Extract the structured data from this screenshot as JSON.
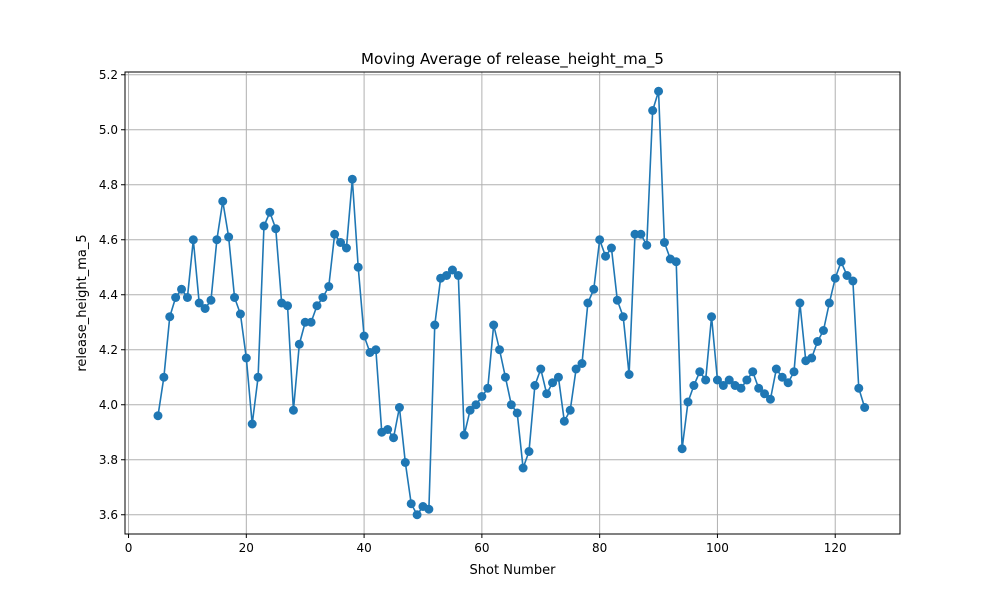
{
  "chart_data": {
    "type": "line",
    "title": "Moving Average of release_height_ma_5",
    "xlabel": "Shot Number",
    "ylabel": "release_height_ma_5",
    "xlim": [
      -0.6,
      131.0
    ],
    "ylim": [
      3.53,
      5.21
    ],
    "xticks": [
      0,
      20,
      40,
      60,
      80,
      100,
      120
    ],
    "xtick_labels": [
      "0",
      "20",
      "40",
      "60",
      "80",
      "100",
      "120"
    ],
    "yticks": [
      3.6,
      3.8,
      4.0,
      4.2,
      4.4,
      4.6,
      4.8,
      5.0,
      5.2
    ],
    "ytick_labels": [
      "3.6",
      "3.8",
      "4.0",
      "4.2",
      "4.4",
      "4.6",
      "4.8",
      "5.0",
      "5.2"
    ],
    "grid": true,
    "marker": "circle",
    "color": "#1f77b4",
    "series": [
      {
        "x": [
          5,
          6,
          7,
          8,
          9,
          10,
          11,
          12,
          13,
          14,
          15,
          16,
          17,
          18,
          19,
          20,
          21,
          22,
          23,
          24,
          25,
          26,
          27,
          28,
          29,
          30,
          31,
          32,
          33,
          34,
          35,
          36,
          37,
          38,
          39,
          40,
          41,
          42,
          43,
          44,
          45,
          46,
          47,
          48,
          49,
          50,
          51,
          52,
          53,
          54,
          55,
          56,
          57,
          58,
          59,
          60,
          61,
          62,
          63,
          64,
          65,
          66,
          67,
          68,
          69,
          70,
          71,
          72,
          73,
          74,
          75,
          76,
          77,
          78,
          79,
          80,
          81,
          82,
          83,
          84,
          85,
          86,
          87,
          88,
          89,
          90,
          91,
          92,
          93,
          94,
          95,
          96,
          97,
          98,
          99,
          100,
          101,
          102,
          103,
          104,
          105,
          106,
          107,
          108,
          109,
          110,
          111,
          112,
          113,
          114,
          115,
          116,
          117,
          118,
          119,
          120,
          121,
          122,
          123,
          124,
          125
        ],
        "values": [
          3.96,
          4.1,
          4.32,
          4.39,
          4.42,
          4.39,
          4.6,
          4.37,
          4.35,
          4.38,
          4.6,
          4.74,
          4.61,
          4.39,
          4.33,
          4.17,
          3.93,
          4.1,
          4.65,
          4.7,
          4.64,
          4.37,
          4.36,
          3.98,
          4.22,
          4.3,
          4.3,
          4.36,
          4.39,
          4.43,
          4.62,
          4.59,
          4.57,
          4.82,
          4.5,
          4.25,
          4.19,
          4.2,
          3.9,
          3.91,
          3.88,
          3.99,
          3.79,
          3.64,
          3.6,
          3.63,
          3.62,
          4.29,
          4.46,
          4.47,
          4.49,
          4.47,
          3.89,
          3.98,
          4.0,
          4.03,
          4.06,
          4.29,
          4.2,
          4.1,
          4.0,
          3.97,
          3.77,
          3.83,
          4.07,
          4.13,
          4.04,
          4.08,
          4.1,
          3.94,
          3.98,
          4.13,
          4.15,
          4.37,
          4.42,
          4.6,
          4.54,
          4.57,
          4.38,
          4.32,
          4.11,
          4.62,
          4.62,
          4.58,
          5.07,
          5.14,
          4.59,
          4.53,
          4.52,
          3.84,
          4.01,
          4.07,
          4.12,
          4.09,
          4.32,
          4.09,
          4.07,
          4.09,
          4.07,
          4.06,
          4.09,
          4.12,
          4.06,
          4.04,
          4.02,
          4.13,
          4.1,
          4.08,
          4.12,
          4.37,
          4.16,
          4.17,
          4.23,
          4.27,
          4.37,
          4.46,
          4.52,
          4.47,
          4.45,
          4.06,
          3.99
        ]
      }
    ]
  }
}
